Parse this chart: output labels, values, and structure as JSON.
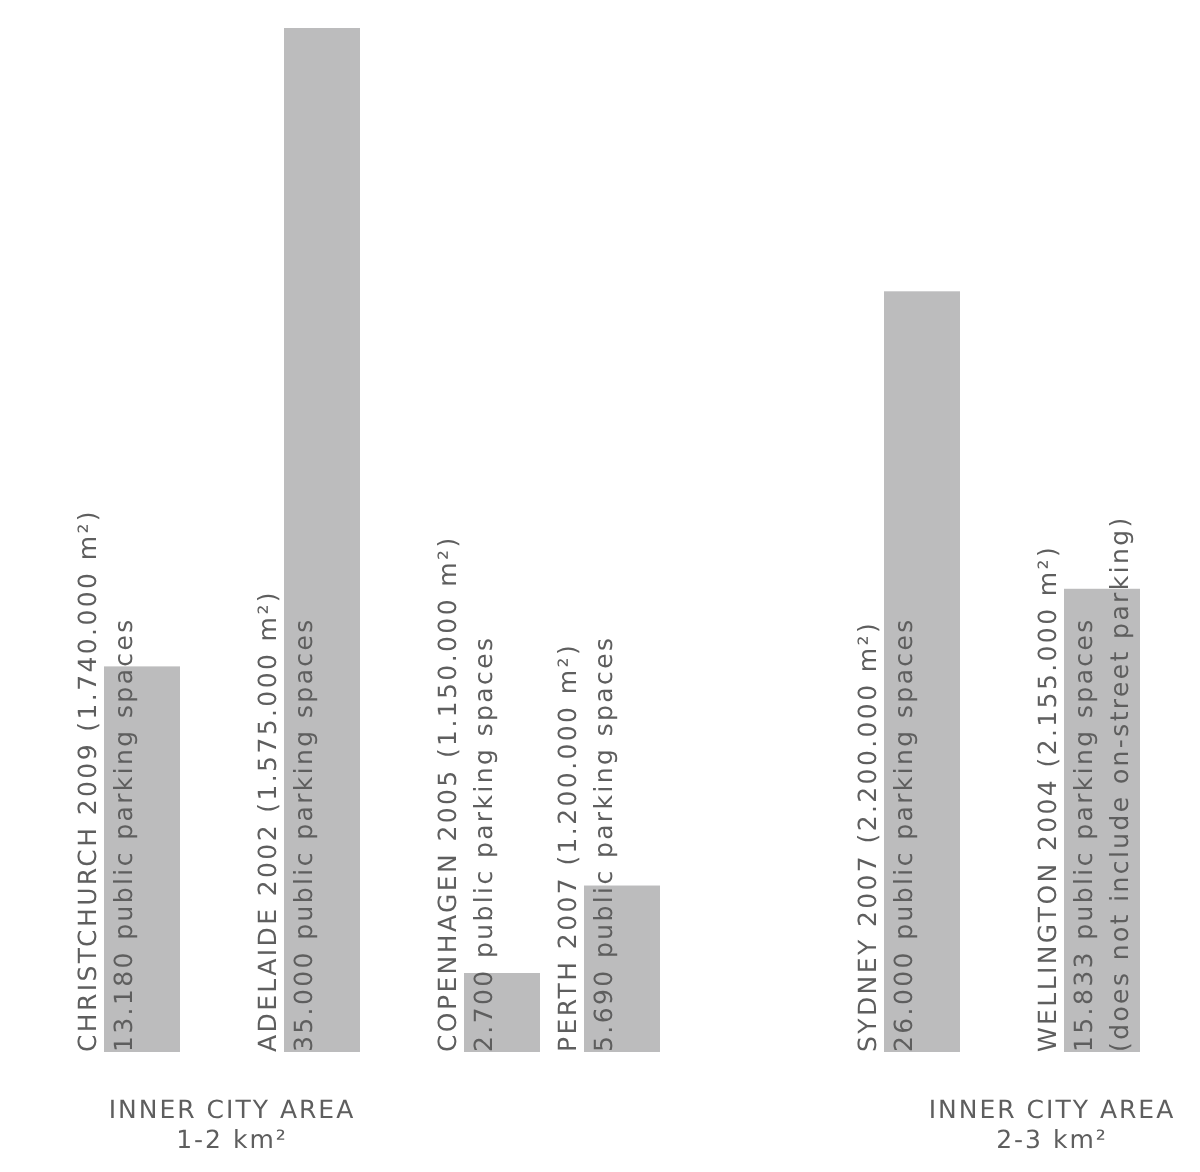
{
  "chart_data": {
    "type": "bar",
    "categories": [
      "CHRISTCHURCH 2009   (1.740.000 m²)",
      "ADELAIDE 2002   (1.575.000 m²)",
      "COPENHAGEN 2005   (1.150.000 m²)",
      "PERTH 2007   (1.200.000 m²)",
      "SYDNEY 2007   (2.200.000 m²)",
      "WELLINGTON 2004   (2.155.000 m²)"
    ],
    "values": [
      13180,
      35000,
      2700,
      5690,
      26000,
      15833
    ],
    "value_labels": [
      "13.180 public parking spaces",
      "35.000 public parking spaces",
      "2.700 public parking spaces",
      "5.690 public parking spaces",
      "26.000 public parking spaces",
      "15.833 public parking spaces"
    ],
    "color": "#bcbcbd",
    "annotations": [
      "(does not include on-street parking)",
      "INNER CITY AREA\n1-2 km²",
      "INNER CITY AREA\n2-3 km²"
    ]
  }
}
